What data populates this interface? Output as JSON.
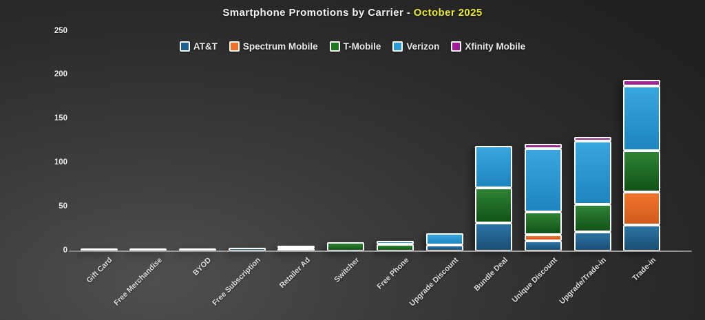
{
  "title": {
    "main": "Smartphone Promotions by Carrier - ",
    "highlight": "October 2025"
  },
  "colors": {
    "background_light": "#4f4f4f",
    "background_dark": "#212121",
    "title_text": "#f2f2f2",
    "title_highlight": "#e9e932",
    "axis_text": "#f0f0f0",
    "segment_outline": "#ffffff"
  },
  "chart_data": {
    "type": "bar",
    "stacked": true,
    "title": "Smartphone Promotions by Carrier - October 2025",
    "xlabel": "",
    "ylabel": "",
    "ylim": [
      0,
      250
    ],
    "yticks": [
      0,
      50,
      100,
      150,
      200,
      250
    ],
    "grid": false,
    "legend_position": "top",
    "categories": [
      "Gift Card",
      "Free Merchandise",
      "BYOD",
      "Free Subscription",
      "Retailer Ad",
      "Switcher",
      "Free Phone",
      "Upgrade Discount",
      "Bundle Deal",
      "Unique Discount",
      "Upgrade/Trade-in",
      "Trade-in"
    ],
    "series": [
      {
        "name": "AT&T",
        "swatch_color": "#1d6496",
        "color_top": "#2b74a6",
        "color_bottom": "#1a4e74",
        "values": [
          2,
          2,
          3,
          4,
          2,
          0,
          0,
          7,
          32,
          12,
          22,
          30
        ]
      },
      {
        "name": "Spectrum Mobile",
        "swatch_color": "#ee7125",
        "color_top": "#f1762b",
        "color_bottom": "#d15a1d",
        "values": [
          0,
          0,
          0,
          0,
          0,
          0,
          0,
          0,
          0,
          7,
          0,
          37
        ]
      },
      {
        "name": "T-Mobile",
        "swatch_color": "#1a7a1f",
        "color_top": "#2f8335",
        "color_bottom": "#115317",
        "values": [
          0,
          0,
          0,
          0,
          0,
          10,
          8,
          0,
          40,
          26,
          31,
          47
        ]
      },
      {
        "name": "Verizon",
        "swatch_color": "#2b9cd8",
        "color_top": "#38a6e0",
        "color_bottom": "#1d85c0",
        "values": [
          0,
          0,
          0,
          0,
          3,
          0,
          4,
          13,
          48,
          72,
          72,
          74
        ]
      },
      {
        "name": "Xfinity Mobile",
        "swatch_color": "#a11d99",
        "color_top": "#ad2fa0",
        "color_bottom": "#8f2384",
        "values": [
          0,
          0,
          0,
          0,
          0,
          0,
          0,
          0,
          0,
          5,
          5,
          7
        ]
      }
    ]
  }
}
